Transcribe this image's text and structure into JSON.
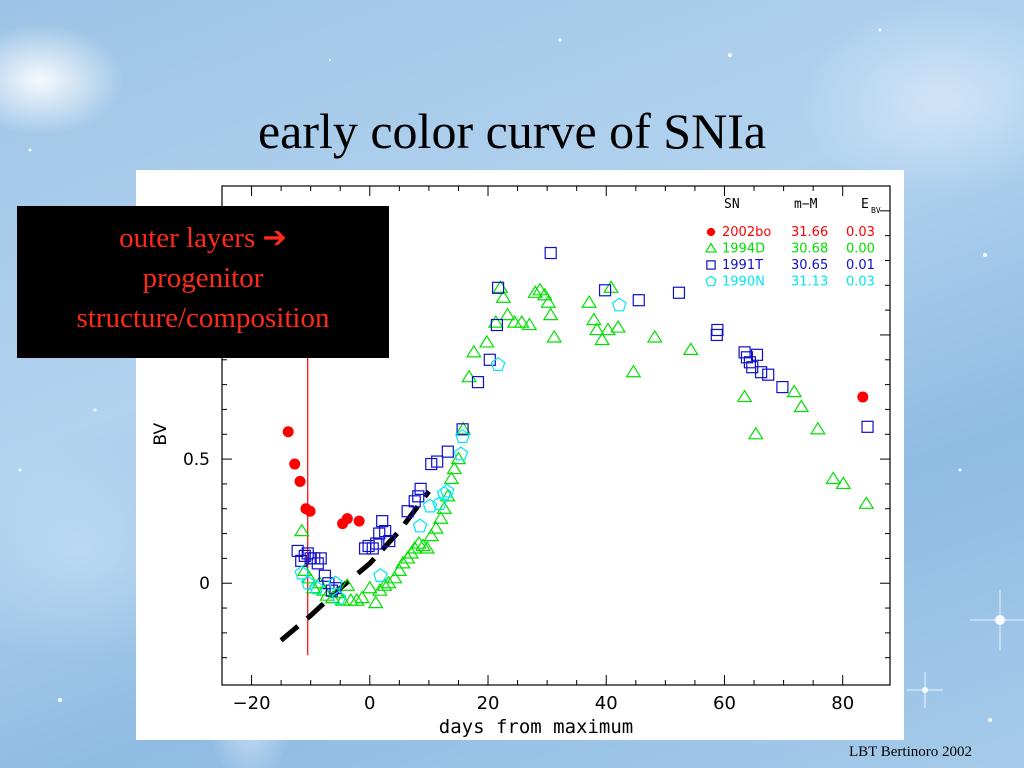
{
  "slide": {
    "title": "early color curve of SNIa",
    "callout_line1": "outer layers",
    "callout_arrow": "➔",
    "callout_line2": "progenitor",
    "callout_line3": "structure/composition",
    "footer": "LBT Bertinoro 2002",
    "callout_text_color": "#ff2a1a",
    "callout_bg": "#000000"
  },
  "chart_data": {
    "type": "scatter",
    "xlabel": "days from maximum",
    "ylabel": "BV",
    "xlim": [
      -25,
      88
    ],
    "ylim": [
      -0.41,
      1.6
    ],
    "x_ticks": [
      -20,
      0,
      20,
      40,
      60,
      80
    ],
    "y_ticks": [
      0,
      0.5,
      1,
      1.5
    ],
    "y_tick_labels": [
      "0",
      "0.5",
      "",
      ""
    ],
    "grid": false,
    "legend": {
      "position": "top-right",
      "headers": [
        "SN",
        "m−M",
        "E",
        "BV"
      ],
      "entries": [
        {
          "name": "2002bo",
          "mM": "31.66",
          "ebv": "0.03",
          "color": "#ff0000",
          "marker": "circle"
        },
        {
          "name": "1994D",
          "mM": "30.68",
          "ebv": "0.00",
          "color": "#00e000",
          "marker": "triangle"
        },
        {
          "name": "1991T",
          "mM": "30.65",
          "ebv": "0.01",
          "color": "#1010c8",
          "marker": "square"
        },
        {
          "name": "1990N",
          "mM": "31.13",
          "ebv": "0.03",
          "color": "#00e8f0",
          "marker": "pentagon"
        }
      ]
    },
    "vertical_line": {
      "x": -10.5,
      "y_from": -0.29,
      "y_to": 1.52,
      "color": "#ff0000"
    },
    "dashed_fit": [
      [
        -15,
        -0.23
      ],
      [
        -10,
        -0.13
      ],
      [
        -5,
        -0.02
      ],
      [
        0,
        0.08
      ],
      [
        5,
        0.21
      ],
      [
        10,
        0.37
      ]
    ],
    "series": [
      {
        "name": "2002bo",
        "color": "#ff0000",
        "marker": "circle",
        "points": [
          [
            -13.8,
            0.61
          ],
          [
            -12.7,
            0.48
          ],
          [
            -11.8,
            0.41
          ],
          [
            -10.8,
            0.3
          ],
          [
            -10.1,
            0.29
          ],
          [
            -4.6,
            0.24
          ],
          [
            -3.8,
            0.26
          ],
          [
            -1.8,
            0.25
          ],
          [
            83.4,
            0.75
          ]
        ]
      },
      {
        "name": "1994D",
        "color": "#00e000",
        "marker": "triangle",
        "points": [
          [
            -11.5,
            0.21
          ],
          [
            -11,
            0.05
          ],
          [
            -10.2,
            0.02
          ],
          [
            -9.5,
            -0.02
          ],
          [
            -8.5,
            0.0
          ],
          [
            -7.8,
            -0.03
          ],
          [
            -7.2,
            -0.05
          ],
          [
            -6.3,
            -0.06
          ],
          [
            -5.5,
            -0.04
          ],
          [
            -4.6,
            -0.07
          ],
          [
            -3.8,
            -0.01
          ],
          [
            -3.2,
            -0.07
          ],
          [
            -2.2,
            -0.07
          ],
          [
            -1.3,
            -0.06
          ],
          [
            0,
            -0.02
          ],
          [
            1,
            -0.08
          ],
          [
            1.7,
            -0.03
          ],
          [
            2.5,
            -0.01
          ],
          [
            3.2,
            0.0
          ],
          [
            4.2,
            0.02
          ],
          [
            5,
            0.05
          ],
          [
            5.6,
            0.08
          ],
          [
            6.4,
            0.1
          ],
          [
            7,
            0.12
          ],
          [
            7.6,
            0.14
          ],
          [
            8.3,
            0.16
          ],
          [
            9,
            0.15
          ],
          [
            9.7,
            0.14
          ],
          [
            10.4,
            0.19
          ],
          [
            11.2,
            0.22
          ],
          [
            12,
            0.26
          ],
          [
            12.6,
            0.3
          ],
          [
            13.2,
            0.35
          ],
          [
            13.8,
            0.42
          ],
          [
            14.3,
            0.46
          ],
          [
            15,
            0.5
          ],
          [
            15.8,
            0.62
          ],
          [
            16.8,
            0.83
          ],
          [
            17.6,
            0.93
          ],
          [
            19.8,
            0.97
          ],
          [
            21.3,
            1.05
          ],
          [
            22.1,
            1.19
          ],
          [
            22.6,
            1.15
          ],
          [
            23.3,
            1.08
          ],
          [
            24.5,
            1.05
          ],
          [
            25.7,
            1.05
          ],
          [
            27,
            1.04
          ],
          [
            28,
            1.17
          ],
          [
            28.8,
            1.18
          ],
          [
            29.6,
            1.16
          ],
          [
            30.2,
            1.13
          ],
          [
            30.6,
            1.08
          ],
          [
            31.2,
            0.99
          ],
          [
            37.1,
            1.13
          ],
          [
            37.9,
            1.06
          ],
          [
            38.4,
            1.02
          ],
          [
            39.3,
            0.98
          ],
          [
            40.3,
            1.02
          ],
          [
            40.8,
            1.19
          ],
          [
            42,
            1.03
          ],
          [
            44.6,
            0.85
          ],
          [
            48.2,
            0.99
          ],
          [
            54.3,
            0.94
          ],
          [
            63.4,
            0.75
          ],
          [
            65.3,
            0.6
          ],
          [
            71.8,
            0.77
          ],
          [
            73,
            0.71
          ],
          [
            75.8,
            0.62
          ],
          [
            78.4,
            0.42
          ],
          [
            80.1,
            0.4
          ],
          [
            84,
            0.32
          ]
        ]
      },
      {
        "name": "1991T",
        "color": "#1010c8",
        "marker": "square",
        "points": [
          [
            -12.2,
            0.13
          ],
          [
            -11.6,
            0.09
          ],
          [
            -11,
            0.11
          ],
          [
            -10.5,
            0.12
          ],
          [
            -10,
            0.1
          ],
          [
            -9.4,
            0.1
          ],
          [
            -8.8,
            0.08
          ],
          [
            -8.3,
            0.1
          ],
          [
            -7.6,
            0.03
          ],
          [
            -7,
            0.0
          ],
          [
            -6.4,
            -0.03
          ],
          [
            -5.8,
            -0.02
          ],
          [
            -0.8,
            0.14
          ],
          [
            -0.2,
            0.15
          ],
          [
            0.5,
            0.14
          ],
          [
            1.1,
            0.16
          ],
          [
            1.6,
            0.2
          ],
          [
            2.1,
            0.25
          ],
          [
            2.6,
            0.21
          ],
          [
            3.3,
            0.17
          ],
          [
            6.4,
            0.29
          ],
          [
            7.6,
            0.33
          ],
          [
            8.2,
            0.35
          ],
          [
            8.6,
            0.38
          ],
          [
            10.4,
            0.48
          ],
          [
            11.4,
            0.49
          ],
          [
            13.2,
            0.53
          ],
          [
            15.7,
            0.62
          ],
          [
            18.3,
            0.81
          ],
          [
            20.3,
            0.9
          ],
          [
            21.5,
            1.04
          ],
          [
            21.7,
            1.19
          ],
          [
            30.6,
            1.33
          ],
          [
            39.8,
            1.18
          ],
          [
            45.5,
            1.14
          ],
          [
            52.3,
            1.17
          ],
          [
            58.7,
            1.0
          ],
          [
            58.8,
            1.02
          ],
          [
            63.4,
            0.93
          ],
          [
            63.8,
            0.91
          ],
          [
            64.3,
            0.89
          ],
          [
            64.7,
            0.87
          ],
          [
            65.5,
            0.92
          ],
          [
            66.2,
            0.85
          ],
          [
            67.4,
            0.84
          ],
          [
            69.8,
            0.79
          ],
          [
            84.2,
            0.63
          ]
        ]
      },
      {
        "name": "1990N",
        "color": "#00e8f0",
        "marker": "pentagon",
        "points": [
          [
            -11.5,
            0.04
          ],
          [
            -10.4,
            0.0
          ],
          [
            -9,
            -0.02
          ],
          [
            -5.8,
            0.0
          ],
          [
            -5.2,
            -0.06
          ],
          [
            1.8,
            0.03
          ],
          [
            8.5,
            0.23
          ],
          [
            10.2,
            0.31
          ],
          [
            11.8,
            0.32
          ],
          [
            12.6,
            0.36
          ],
          [
            13.1,
            0.37
          ],
          [
            15.4,
            0.52
          ],
          [
            15.7,
            0.59
          ],
          [
            21.7,
            0.88
          ],
          [
            42.2,
            1.12
          ]
        ]
      }
    ]
  }
}
